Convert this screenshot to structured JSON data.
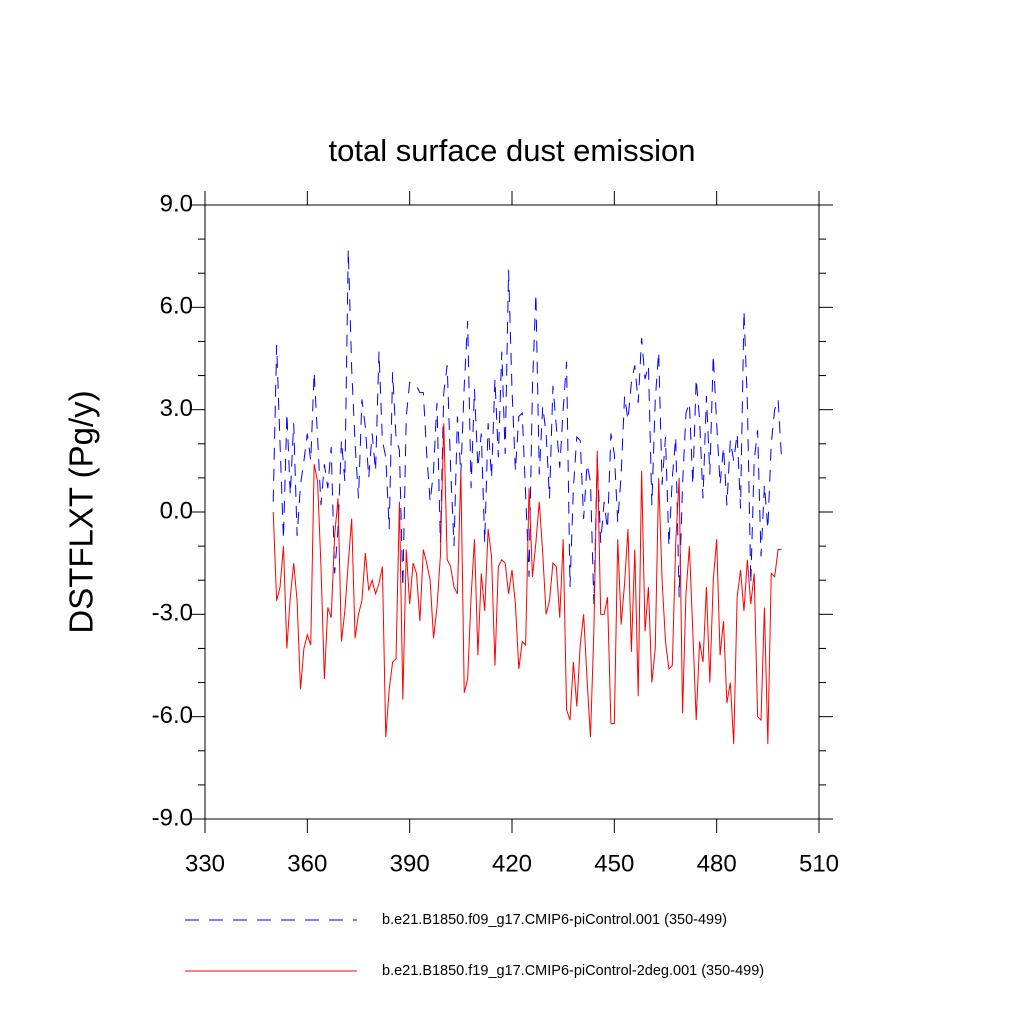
{
  "chart_data": {
    "type": "line",
    "title": "total surface dust emission",
    "ylabel": "DSTFLXT  (Pg/y)",
    "xlim": [
      330,
      510
    ],
    "xticks": [
      330,
      360,
      390,
      420,
      450,
      480,
      510
    ],
    "ylim": [
      -9,
      9
    ],
    "yticks": [
      {
        "value": -9,
        "label": "-9.0"
      },
      {
        "value": -6,
        "label": "-6.0"
      },
      {
        "value": -3,
        "label": "-3.0"
      },
      {
        "value": 0,
        "label": "0.0"
      },
      {
        "value": 3,
        "label": "3.0"
      },
      {
        "value": 6,
        "label": "6.0"
      },
      {
        "value": 9,
        "label": "9.0"
      }
    ],
    "yminorticks": [
      -8,
      -7,
      -5,
      -4,
      -2,
      -1,
      1,
      2,
      4,
      5,
      7,
      8
    ],
    "grid": false,
    "legend": "bottom",
    "x": [
      350,
      351,
      352,
      353,
      354,
      355,
      356,
      357,
      358,
      359,
      360,
      361,
      362,
      363,
      364,
      365,
      366,
      367,
      368,
      369,
      370,
      371,
      372,
      373,
      374,
      375,
      376,
      377,
      378,
      379,
      380,
      381,
      382,
      383,
      384,
      385,
      386,
      387,
      388,
      389,
      390,
      391,
      392,
      393,
      394,
      395,
      396,
      397,
      398,
      399,
      400,
      401,
      402,
      403,
      404,
      405,
      406,
      407,
      408,
      409,
      410,
      411,
      412,
      413,
      414,
      415,
      416,
      417,
      418,
      419,
      420,
      421,
      422,
      423,
      424,
      425,
      426,
      427,
      428,
      429,
      430,
      431,
      432,
      433,
      434,
      435,
      436,
      437,
      438,
      439,
      440,
      441,
      442,
      443,
      444,
      445,
      446,
      447,
      448,
      449,
      450,
      451,
      452,
      453,
      454,
      455,
      456,
      457,
      458,
      459,
      460,
      461,
      462,
      463,
      464,
      465,
      466,
      467,
      468,
      469,
      470,
      471,
      472,
      473,
      474,
      475,
      476,
      477,
      478,
      479,
      480,
      481,
      482,
      483,
      484,
      485,
      486,
      487,
      488,
      489,
      490,
      491,
      492,
      493,
      494,
      495,
      496,
      497,
      498,
      499
    ],
    "series": [
      {
        "name": "b.e21.B1850.f09_g17.CMIP6-piControl.001 (350-499)",
        "color": "#0000ff",
        "linestyle": "dashed",
        "values": [
          0.3,
          4.9,
          2.0,
          -0.8,
          2.9,
          0.5,
          2.6,
          -0.7,
          0.8,
          1.5,
          2.3,
          1.5,
          4.1,
          2.2,
          0.2,
          1.4,
          0.7,
          1.9,
          -1.8,
          -0.5,
          2.1,
          0.9,
          7.7,
          4.2,
          2.0,
          0.4,
          3.3,
          2.5,
          1.0,
          2.3,
          1.2,
          4.7,
          2.1,
          1.6,
          -0.5,
          4.1,
          2.2,
          1.8,
          -2.2,
          2.8,
          3.8,
          3.7,
          3.7,
          3.5,
          3.5,
          1.7,
          0.3,
          1.2,
          3.2,
          -0.9,
          3.5,
          4.3,
          1.3,
          -1.0,
          2.8,
          1.1,
          3.7,
          5.6,
          0.7,
          3.6,
          1.3,
          2.3,
          -0.9,
          2.6,
          1.0,
          3.9,
          1.6,
          4.7,
          1.7,
          7.1,
          3.6,
          1.2,
          2.8,
          2.9,
          0.5,
          -1.9,
          3.7,
          6.4,
          1.1,
          3.1,
          2.3,
          0.4,
          3.7,
          2.5,
          1.3,
          3.0,
          4.4,
          -2.2,
          0.7,
          2.2,
          2.1,
          -0.2,
          1.4,
          0.9,
          -2.7,
          1.6,
          -0.9,
          0.3,
          -0.5,
          2.3,
          1.7,
          -0.3,
          1.1,
          3.4,
          2.7,
          3.8,
          4.3,
          3.2,
          5.1,
          3.9,
          4.3,
          0.2,
          3.3,
          4.7,
          0.8,
          2.2,
          -1.0,
          1.0,
          2.2,
          -2.5,
          0.8,
          2.9,
          3.2,
          0.8,
          3.9,
          2.7,
          0.4,
          3.4,
          1.1,
          4.6,
          2.6,
          0.8,
          1.9,
          0.2,
          2.1,
          1.5,
          2.3,
          0.1,
          5.9,
          3.2,
          -2.1,
          1.5,
          2.4,
          -1.3,
          0.8,
          -0.5,
          2.0,
          3.0,
          3.3,
          1.6
        ]
      },
      {
        "name": "b.e21.B1850.f19_g17.CMIP6-piControl-2deg.001 (350-499)",
        "color": "#ff0000",
        "linestyle": "solid",
        "values": [
          0.0,
          -2.6,
          -2.2,
          -1.0,
          -4.0,
          -2.5,
          -1.5,
          -2.6,
          -5.2,
          -4.0,
          -3.6,
          -3.9,
          1.4,
          0.9,
          -1.6,
          -4.9,
          -2.8,
          -3.1,
          -0.7,
          0.4,
          -3.8,
          -2.9,
          -1.5,
          -0.2,
          -3.7,
          -3.0,
          -2.6,
          -1.2,
          -2.3,
          -2.0,
          -2.4,
          -2.1,
          -1.6,
          -6.6,
          -5.2,
          -4.4,
          -4.3,
          0.3,
          -5.5,
          -1.1,
          -2.7,
          -1.5,
          -1.8,
          -3.2,
          -1.1,
          -1.5,
          -2.0,
          -3.7,
          -2.8,
          -1.3,
          2.6,
          -1.4,
          -1.6,
          -2.2,
          -2.4,
          1.2,
          -5.3,
          -4.9,
          -2.5,
          -0.8,
          -4.2,
          -1.8,
          -2.9,
          -0.5,
          -1.3,
          -4.5,
          -1.6,
          -1.4,
          -1.5,
          -2.4,
          -1.7,
          -2.7,
          -4.6,
          -3.8,
          -3.9,
          0.7,
          -1.9,
          -0.9,
          0.3,
          -1.2,
          -3.0,
          -2.6,
          -1.5,
          -1.6,
          -3.1,
          -0.8,
          -5.8,
          -6.1,
          -4.4,
          -5.7,
          -3.9,
          -3.0,
          -4.9,
          -6.6,
          -3.5,
          1.8,
          -3.0,
          -3.0,
          -2.5,
          -6.2,
          -6.2,
          -0.8,
          -3.3,
          -2.1,
          -0.5,
          -4.1,
          -1.1,
          -5.4,
          1.2,
          -3.5,
          -2.2,
          -5.0,
          -4.0,
          1.0,
          -2.0,
          -3.8,
          -4.6,
          -4.5,
          -0.9,
          1.0,
          -5.9,
          -2.4,
          -1.0,
          -3.5,
          -6.1,
          -3.8,
          -4.4,
          -2.2,
          -5.0,
          -2.0,
          -0.8,
          -4.2,
          -3.2,
          -5.6,
          -5.0,
          -6.8,
          -2.5,
          -1.7,
          -2.9,
          -1.4,
          -2.7,
          -1.8,
          -6.0,
          -6.1,
          -2.8,
          -6.8,
          -1.8,
          -1.9,
          -1.1,
          -1.1
        ]
      }
    ]
  }
}
